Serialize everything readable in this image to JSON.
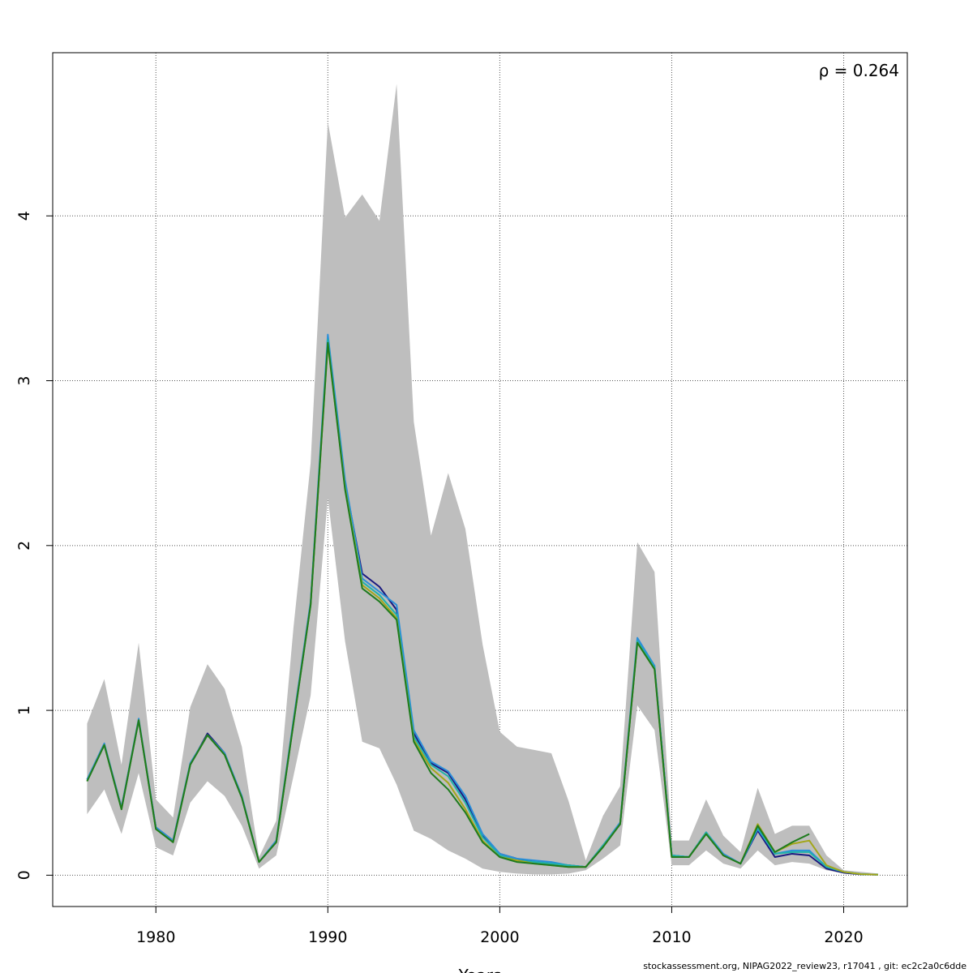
{
  "chart_data": {
    "type": "line",
    "annotation": "ρ = 0.264",
    "xlabel": "Years",
    "ylabel": "",
    "xlim": [
      1974,
      2023.7
    ],
    "ylim": [
      -0.19,
      4.99
    ],
    "x_ticks": [
      1980,
      1990,
      2000,
      2010,
      2020
    ],
    "y_ticks": [
      0,
      1,
      2,
      3,
      4
    ],
    "grid": true,
    "band": {
      "x": [
        1976,
        1977,
        1978,
        1979,
        1980,
        1981,
        1982,
        1983,
        1984,
        1985,
        1986,
        1987,
        1988,
        1989,
        1990,
        1991,
        1992,
        1993,
        1994,
        1995,
        1996,
        1997,
        1998,
        1999,
        2000,
        2001,
        2002,
        2003,
        2004,
        2005,
        2006,
        2007,
        2008,
        2009,
        2010,
        2011,
        2012,
        2013,
        2014,
        2015,
        2016,
        2017,
        2018,
        2019,
        2020,
        2021,
        2022
      ],
      "upper": [
        0.92,
        1.19,
        0.67,
        1.41,
        0.46,
        0.35,
        1.02,
        1.28,
        1.13,
        0.78,
        0.11,
        0.33,
        1.5,
        2.5,
        4.57,
        3.99,
        4.13,
        3.97,
        4.8,
        2.75,
        2.06,
        2.44,
        2.1,
        1.4,
        0.87,
        0.78,
        0.76,
        0.74,
        0.45,
        0.09,
        0.36,
        0.54,
        2.02,
        1.84,
        0.21,
        0.21,
        0.46,
        0.24,
        0.14,
        0.53,
        0.25,
        0.3,
        0.3,
        0.12,
        0.03,
        0.02,
        0.01
      ],
      "lower": [
        0.37,
        0.52,
        0.25,
        0.62,
        0.17,
        0.12,
        0.44,
        0.57,
        0.48,
        0.3,
        0.04,
        0.12,
        0.6,
        1.09,
        2.29,
        1.42,
        0.81,
        0.77,
        0.55,
        0.27,
        0.22,
        0.15,
        0.1,
        0.04,
        0.02,
        0.01,
        0.005,
        0.005,
        0.01,
        0.03,
        0.1,
        0.18,
        1.03,
        0.88,
        0.06,
        0.06,
        0.15,
        0.07,
        0.04,
        0.15,
        0.06,
        0.08,
        0.07,
        0.03,
        0.01,
        0.005,
        0.002
      ],
      "color": "#bebebe"
    },
    "x": [
      1976,
      1977,
      1978,
      1979,
      1980,
      1981,
      1982,
      1983,
      1984,
      1985,
      1986,
      1987,
      1988,
      1989,
      1990,
      1991,
      1992,
      1993,
      1994,
      1995,
      1996,
      1997,
      1998,
      1999,
      2000,
      2001,
      2002,
      2003,
      2004,
      2005,
      2006,
      2007,
      2008,
      2009,
      2010,
      2011,
      2012,
      2013,
      2014,
      2015,
      2016,
      2017,
      2018,
      2019,
      2020,
      2021,
      2022
    ],
    "series": [
      {
        "color": "#1a1a80",
        "values": [
          0.58,
          0.79,
          0.41,
          0.94,
          0.29,
          0.21,
          0.67,
          0.86,
          0.74,
          0.47,
          0.08,
          0.2,
          0.93,
          1.65,
          3.24,
          2.38,
          1.83,
          1.75,
          1.61,
          0.86,
          0.68,
          0.62,
          0.46,
          0.24,
          0.13,
          0.1,
          0.08,
          0.07,
          0.06,
          0.05,
          0.18,
          0.31,
          1.42,
          1.26,
          0.12,
          0.11,
          0.26,
          0.12,
          0.07,
          0.27,
          0.11,
          0.13,
          0.12,
          0.04,
          0.015,
          0.005,
          0.003
        ]
      },
      {
        "color": "#2b8fd9",
        "values": [
          0.58,
          0.8,
          0.41,
          0.95,
          0.29,
          0.21,
          0.68,
          0.85,
          0.74,
          0.48,
          0.08,
          0.21,
          0.94,
          1.66,
          3.28,
          2.4,
          1.8,
          1.72,
          1.64,
          0.88,
          0.69,
          0.63,
          0.48,
          0.25,
          0.13,
          0.1,
          0.09,
          0.08,
          0.06,
          0.05,
          0.18,
          0.32,
          1.44,
          1.27,
          0.12,
          0.11,
          0.26,
          0.13,
          0.07,
          0.28,
          0.13,
          0.15,
          0.15,
          0.05,
          0.02,
          0.006,
          0.003
        ]
      },
      {
        "color": "#20b2aa",
        "values": [
          0.57,
          0.79,
          0.4,
          0.94,
          0.28,
          0.2,
          0.67,
          0.85,
          0.73,
          0.47,
          0.08,
          0.2,
          0.92,
          1.64,
          3.25,
          2.36,
          1.78,
          1.7,
          1.58,
          0.84,
          0.67,
          0.6,
          0.44,
          0.23,
          0.12,
          0.09,
          0.08,
          0.07,
          0.06,
          0.05,
          0.18,
          0.31,
          1.42,
          1.26,
          0.12,
          0.11,
          0.26,
          0.12,
          0.07,
          0.29,
          0.13,
          0.14,
          0.14,
          0.05,
          0.02,
          0.006,
          0.003
        ]
      },
      {
        "color": "#a3a61a",
        "values": [
          0.57,
          0.79,
          0.4,
          0.94,
          0.28,
          0.2,
          0.67,
          0.85,
          0.73,
          0.47,
          0.08,
          0.2,
          0.92,
          1.64,
          3.22,
          2.35,
          1.76,
          1.68,
          1.56,
          0.82,
          0.65,
          0.56,
          0.4,
          0.21,
          0.11,
          0.09,
          0.07,
          0.06,
          0.05,
          0.05,
          0.17,
          0.31,
          1.41,
          1.25,
          0.11,
          0.11,
          0.25,
          0.12,
          0.07,
          0.31,
          0.14,
          0.19,
          0.21,
          0.06,
          0.02,
          0.006,
          0.003
        ]
      },
      {
        "color": "#1e7b1e",
        "values": [
          0.57,
          0.79,
          0.4,
          0.94,
          0.28,
          0.2,
          0.67,
          0.85,
          0.73,
          0.47,
          0.08,
          0.2,
          0.92,
          1.64,
          3.23,
          2.34,
          1.74,
          1.66,
          1.55,
          0.81,
          0.62,
          0.52,
          0.38,
          0.2,
          0.11,
          0.08,
          0.07,
          0.06,
          0.05,
          0.05,
          0.17,
          0.31,
          1.41,
          1.25,
          0.11,
          0.11,
          0.25,
          0.12,
          0.07,
          0.3,
          0.14,
          0.2,
          0.25,
          null,
          null,
          null,
          null
        ]
      }
    ]
  },
  "footer": "stockassessment.org, NIPAG2022_review23, r17041 , git: ec2c2a0c6dde"
}
